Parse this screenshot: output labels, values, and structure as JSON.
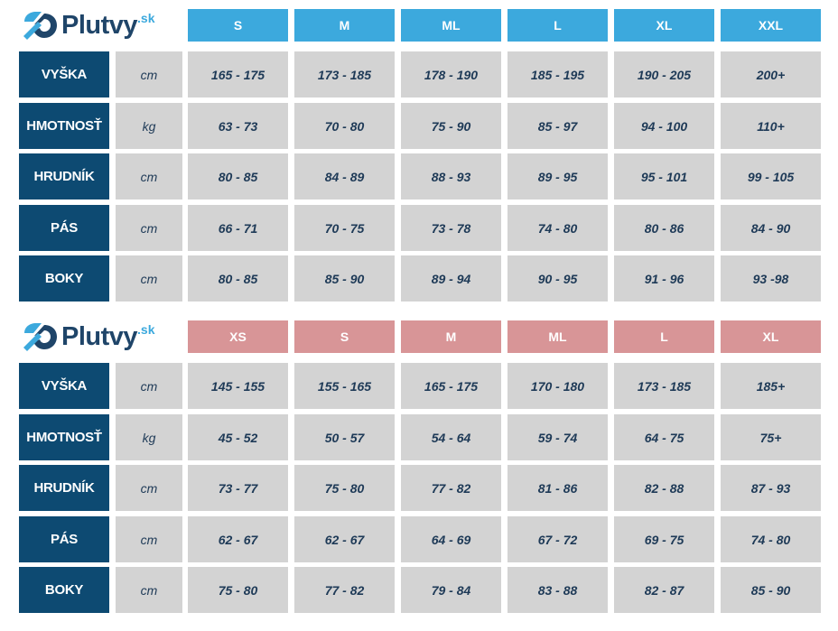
{
  "logo": {
    "brand": "Plutvy",
    "tld": ".sk"
  },
  "tables": [
    {
      "name": "men",
      "accent": "#3ca9dd",
      "sizes": [
        "S",
        "M",
        "ML",
        "L",
        "XL",
        "XXL"
      ],
      "rows": [
        {
          "label": "VYŠKA",
          "unit": "cm",
          "values": [
            "165 - 175",
            "173 - 185",
            "178 - 190",
            "185 - 195",
            "190 - 205",
            "200+"
          ]
        },
        {
          "label": "HMOTNOSŤ",
          "unit": "kg",
          "values": [
            "63 - 73",
            "70 - 80",
            "75 - 90",
            "85 - 97",
            "94 - 100",
            "110+"
          ]
        },
        {
          "label": "HRUDNÍK",
          "unit": "cm",
          "values": [
            "80 - 85",
            "84 - 89",
            "88 - 93",
            "89 - 95",
            "95 - 101",
            "99 - 105"
          ]
        },
        {
          "label": "PÁS",
          "unit": "cm",
          "values": [
            "66 - 71",
            "70 - 75",
            "73 - 78",
            "74 - 80",
            "80 - 86",
            "84 - 90"
          ]
        },
        {
          "label": "BOKY",
          "unit": "cm",
          "values": [
            "80 - 85",
            "85 - 90",
            "89 - 94",
            "90 - 95",
            "91 - 96",
            "93 -98"
          ]
        }
      ]
    },
    {
      "name": "women",
      "accent": "#d89597",
      "sizes": [
        "XS",
        "S",
        "M",
        "ML",
        "L",
        "XL"
      ],
      "rows": [
        {
          "label": "VYŠKA",
          "unit": "cm",
          "values": [
            "145 - 155",
            "155 - 165",
            "165 - 175",
            "170 - 180",
            "173 - 185",
            "185+"
          ]
        },
        {
          "label": "HMOTNOSŤ",
          "unit": "kg",
          "values": [
            "45 - 52",
            "50 - 57",
            "54 - 64",
            "59 - 74",
            "64 - 75",
            "75+"
          ]
        },
        {
          "label": "HRUDNÍK",
          "unit": "cm",
          "values": [
            "73 - 77",
            "75 - 80",
            "77 - 82",
            "81 - 86",
            "82 - 88",
            "87 - 93"
          ]
        },
        {
          "label": "PÁS",
          "unit": "cm",
          "values": [
            "62 - 67",
            "62 - 67",
            "64 - 69",
            "67 - 72",
            "69 - 75",
            "74 - 80"
          ]
        },
        {
          "label": "BOKY",
          "unit": "cm",
          "values": [
            "75 - 80",
            "77 - 82",
            "79 - 84",
            "83 - 88",
            "82 - 87",
            "85 - 90"
          ]
        }
      ]
    }
  ]
}
